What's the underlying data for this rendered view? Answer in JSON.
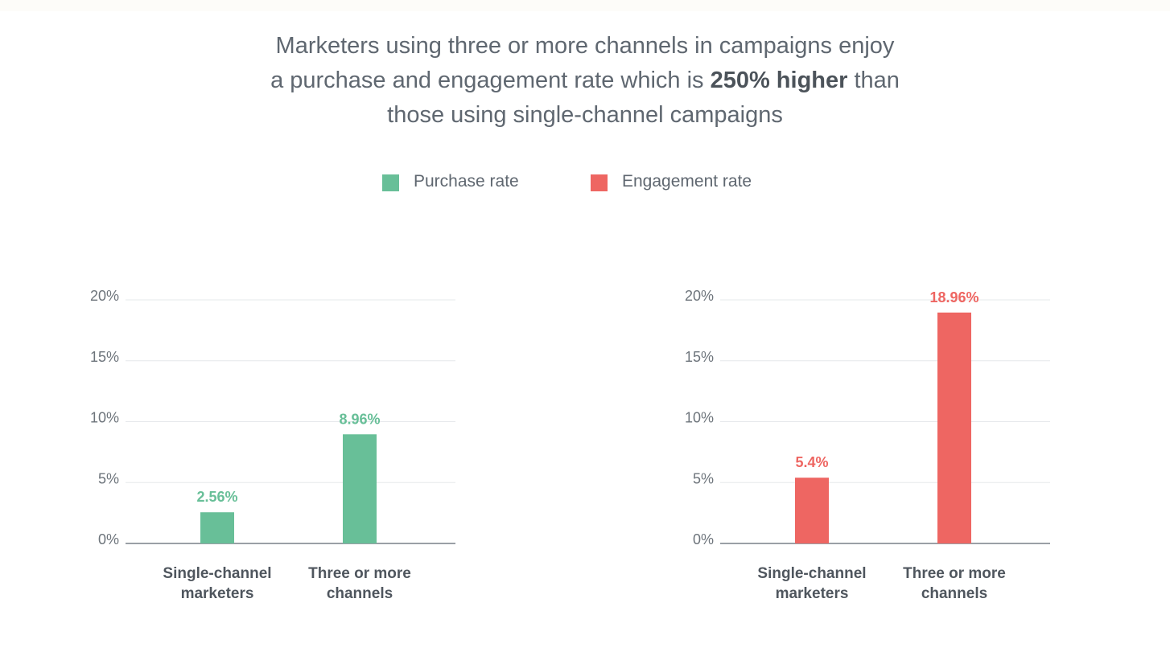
{
  "headline": {
    "line1": "Marketers using three or more channels in campaigns enjoy",
    "line2_pre": "a purchase and engagement rate which is ",
    "line2_bold": "250% higher",
    "line2_post": " than",
    "line3": "those using single-channel campaigns"
  },
  "legend": [
    {
      "label": "Purchase rate",
      "color": "#68bf98"
    },
    {
      "label": "Engagement rate",
      "color": "#ee6662"
    }
  ],
  "chart_data": [
    {
      "type": "bar",
      "title": "",
      "xlabel": "",
      "ylabel": "",
      "categories": [
        [
          "Single-channel",
          "marketers"
        ],
        [
          "Three or more",
          "channels"
        ]
      ],
      "series": [
        {
          "name": "Purchase rate",
          "values": [
            2.56,
            8.96
          ]
        }
      ],
      "value_labels": [
        "2.56%",
        "8.96%"
      ],
      "color": "#68bf98",
      "ylim": [
        0,
        20
      ],
      "yticks": [
        0,
        5,
        10,
        15,
        20
      ],
      "ytick_labels": [
        "0%",
        "5%",
        "10%",
        "15%",
        "20%"
      ],
      "grid": true
    },
    {
      "type": "bar",
      "title": "",
      "xlabel": "",
      "ylabel": "",
      "categories": [
        [
          "Single-channel",
          "marketers"
        ],
        [
          "Three or more",
          "channels"
        ]
      ],
      "series": [
        {
          "name": "Engagement rate",
          "values": [
            5.4,
            18.96
          ]
        }
      ],
      "value_labels": [
        "5.4%",
        "18.96%"
      ],
      "color": "#ee6662",
      "ylim": [
        0,
        20
      ],
      "yticks": [
        0,
        5,
        10,
        15,
        20
      ],
      "ytick_labels": [
        "0%",
        "5%",
        "10%",
        "15%",
        "20%"
      ],
      "grid": true
    }
  ]
}
